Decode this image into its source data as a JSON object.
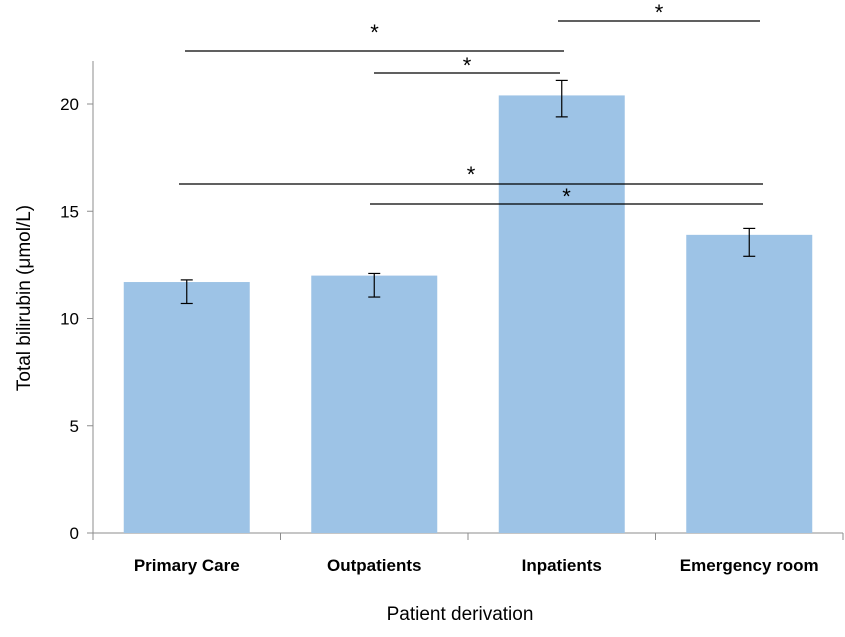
{
  "chart_data": {
    "type": "bar",
    "categories": [
      "Primary Care",
      "Outpatients",
      "Inpatients",
      "Emergency room"
    ],
    "values": [
      11.7,
      12.0,
      20.4,
      13.9
    ],
    "error_bars": [
      {
        "low": 10.7,
        "high": 11.8
      },
      {
        "low": 11.0,
        "high": 12.1
      },
      {
        "low": 19.4,
        "high": 21.1
      },
      {
        "low": 12.9,
        "high": 14.2
      }
    ],
    "xlabel": "Patient derivation",
    "ylabel": "Total bilirubin (μmol/L)",
    "ylim": [
      0,
      22
    ],
    "yticks": [
      0,
      5,
      10,
      15,
      20
    ],
    "grid": false,
    "bar_color": "#9dc3e6",
    "significance": [
      {
        "from": "Primary Care",
        "to": "Inpatients",
        "label": "*"
      },
      {
        "from": "Outpatients",
        "to": "Inpatients",
        "label": "*"
      },
      {
        "from": "Inpatients",
        "to": "Emergency room",
        "label": "*"
      },
      {
        "from": "Primary Care",
        "to": "Emergency room",
        "label": "*"
      },
      {
        "from": "Outpatients",
        "to": "Emergency room",
        "label": "*"
      }
    ]
  }
}
